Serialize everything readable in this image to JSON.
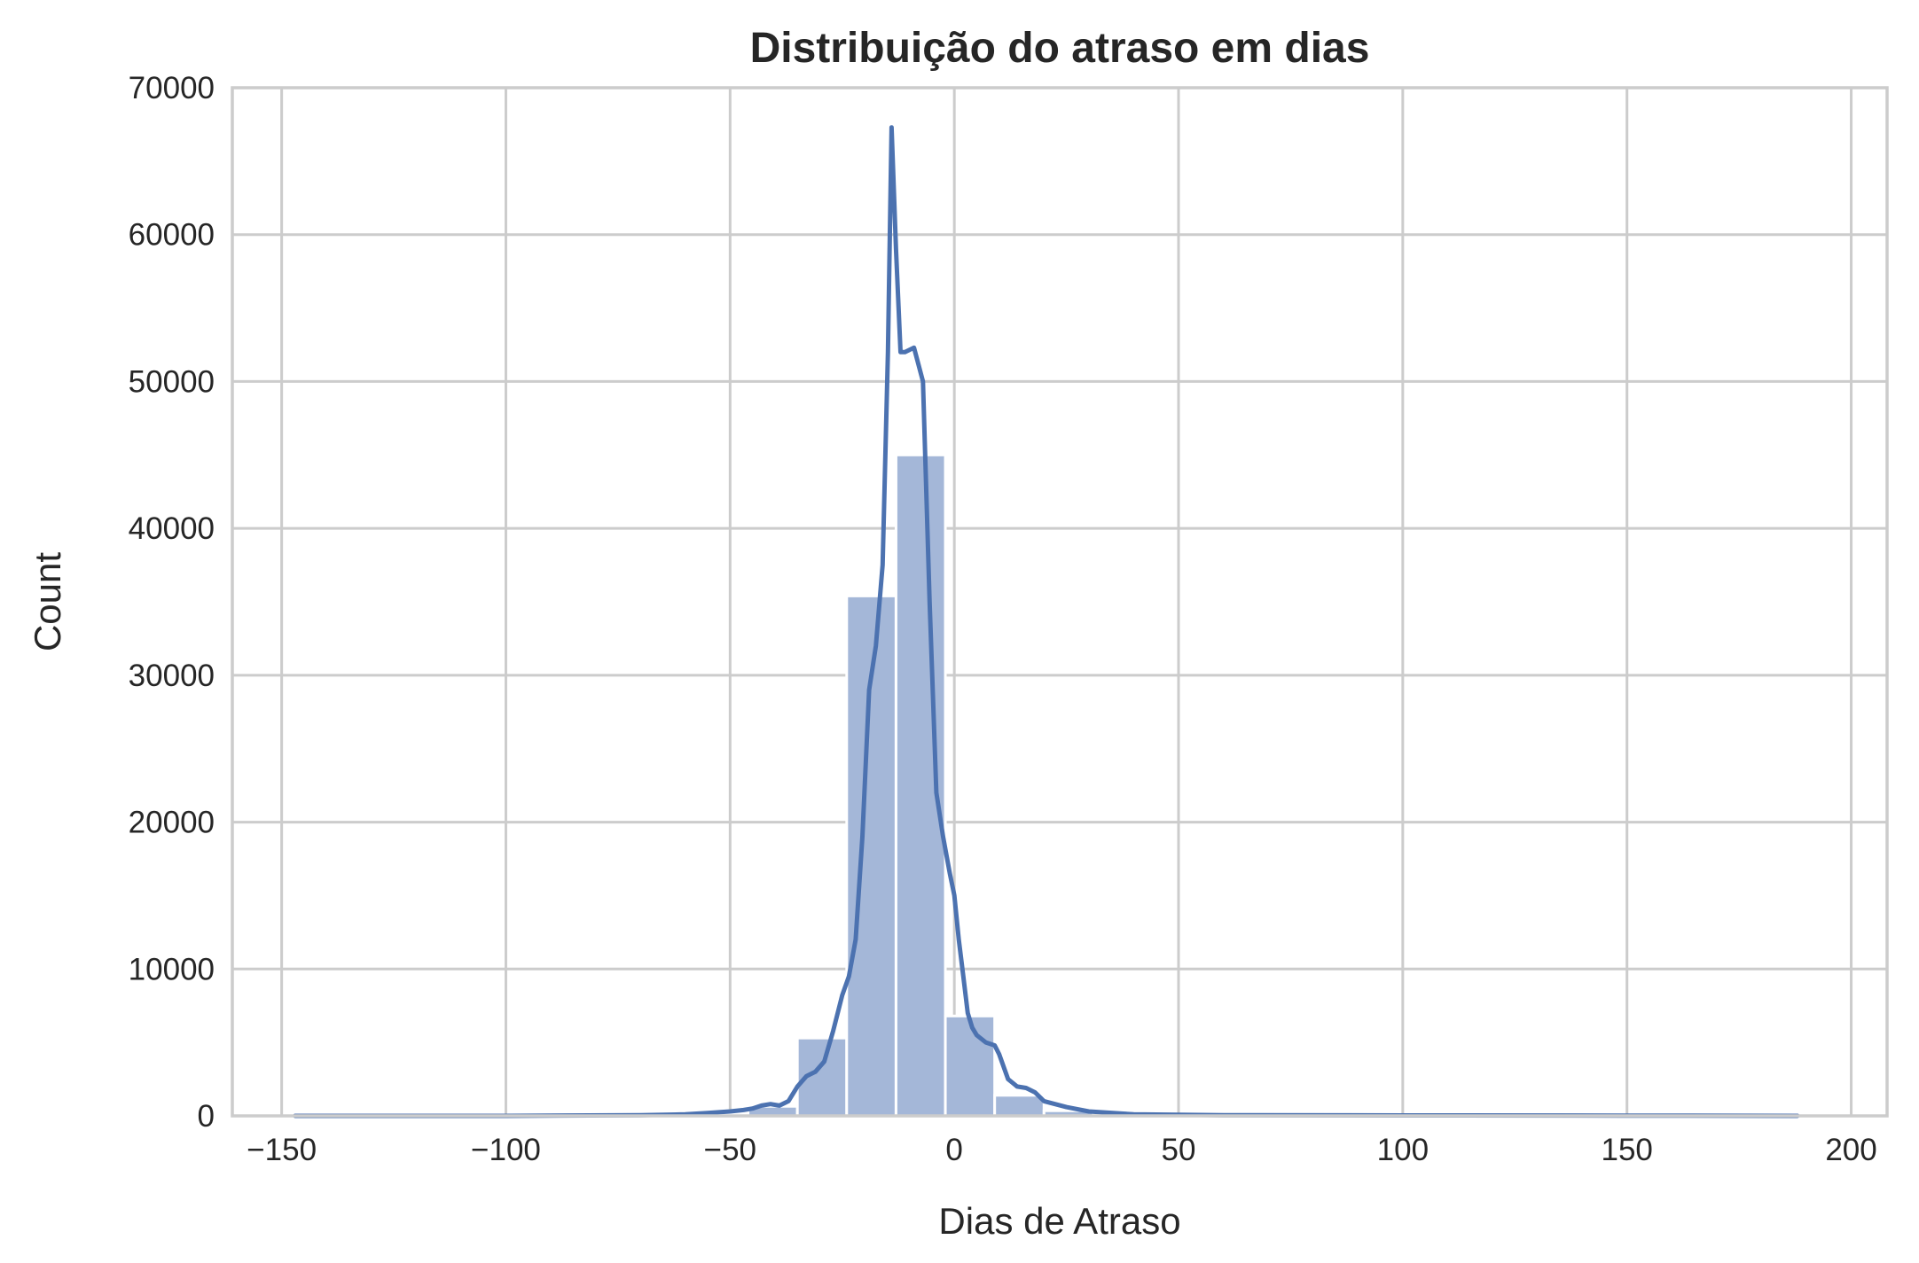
{
  "chart_data": {
    "type": "bar",
    "subtype": "histogram_with_kde",
    "title": "Distribuição do atraso em dias",
    "xlabel": "Dias de Atraso",
    "ylabel": "Count",
    "xlim": [
      -161,
      208
    ],
    "ylim": [
      0,
      70000
    ],
    "xticks": [
      -150,
      -100,
      -50,
      0,
      50,
      100,
      150,
      200
    ],
    "xtick_labels": [
      "−150",
      "−100",
      "−50",
      "0",
      "50",
      "100",
      "150",
      "200"
    ],
    "yticks": [
      0,
      10000,
      20000,
      30000,
      40000,
      50000,
      60000,
      70000
    ],
    "ytick_labels": [
      "0",
      "10000",
      "20000",
      "30000",
      "40000",
      "50000",
      "60000",
      "70000"
    ],
    "grid": true,
    "colors": {
      "bar": "#a4b7d8",
      "line": "#4c72b0",
      "grid": "#cccccc",
      "text": "#262626"
    },
    "bins": [
      {
        "x0": -147,
        "x1": -136,
        "count": 0
      },
      {
        "x0": -136,
        "x1": -124.5,
        "count": 0
      },
      {
        "x0": -124.5,
        "x1": -113,
        "count": 0
      },
      {
        "x0": -113,
        "x1": -102,
        "count": 0
      },
      {
        "x0": -102,
        "x1": -91,
        "count": 0
      },
      {
        "x0": -91,
        "x1": -79.5,
        "count": 0
      },
      {
        "x0": -79.5,
        "x1": -68,
        "count": 0
      },
      {
        "x0": -68,
        "x1": -57,
        "count": 30
      },
      {
        "x0": -57,
        "x1": -46,
        "count": 100
      },
      {
        "x0": -46,
        "x1": -35,
        "count": 650
      },
      {
        "x0": -35,
        "x1": -24,
        "count": 5300
      },
      {
        "x0": -24,
        "x1": -13,
        "count": 35400
      },
      {
        "x0": -13,
        "x1": -2,
        "count": 45000
      },
      {
        "x0": -2,
        "x1": 9,
        "count": 6800
      },
      {
        "x0": 9,
        "x1": 20,
        "count": 1400
      },
      {
        "x0": 20,
        "x1": 31,
        "count": 350
      },
      {
        "x0": 31,
        "x1": 42,
        "count": 100
      },
      {
        "x0": 42,
        "x1": 53,
        "count": 40
      },
      {
        "x0": 53,
        "x1": 64,
        "count": 20
      },
      {
        "x0": 64,
        "x1": 75,
        "count": 10
      },
      {
        "x0": 75,
        "x1": 86,
        "count": 10
      },
      {
        "x0": 86,
        "x1": 97,
        "count": 10
      },
      {
        "x0": 97,
        "x1": 108,
        "count": 10
      },
      {
        "x0": 108,
        "x1": 119,
        "count": 5
      },
      {
        "x0": 119,
        "x1": 130,
        "count": 5
      },
      {
        "x0": 130,
        "x1": 141,
        "count": 5
      },
      {
        "x0": 141,
        "x1": 152,
        "count": 5
      },
      {
        "x0": 152,
        "x1": 163,
        "count": 5
      },
      {
        "x0": 163,
        "x1": 174,
        "count": 5
      },
      {
        "x0": 174,
        "x1": 188,
        "count": 5
      }
    ],
    "kde": {
      "x": [
        -147,
        -100,
        -70,
        -60,
        -55,
        -50,
        -47,
        -45,
        -43,
        -41,
        -39,
        -37,
        -35,
        -33,
        -31,
        -29,
        -27,
        -25,
        -23.5,
        -22,
        -20.5,
        -19,
        -17.5,
        -16,
        -14.8,
        -14,
        -13,
        -12,
        -11,
        -9,
        -7,
        -5.5,
        -4,
        -2.5,
        -1,
        0,
        1,
        2,
        3,
        4,
        5,
        7,
        9,
        10,
        12,
        14,
        16,
        18,
        20,
        25,
        30,
        40,
        60,
        100,
        150,
        188
      ],
      "y": [
        0,
        0,
        50,
        100,
        200,
        300,
        400,
        500,
        700,
        800,
        700,
        1000,
        2000,
        2700,
        3000,
        3700,
        5800,
        8200,
        9500,
        12000,
        19000,
        29000,
        32000,
        37500,
        52000,
        67300,
        59000,
        52000,
        52000,
        52300,
        50000,
        35000,
        22000,
        19000,
        16500,
        15000,
        12000,
        9500,
        7000,
        6000,
        5500,
        5000,
        4800,
        4200,
        2500,
        2000,
        1900,
        1600,
        1000,
        600,
        300,
        100,
        50,
        30,
        20,
        0
      ]
    }
  }
}
